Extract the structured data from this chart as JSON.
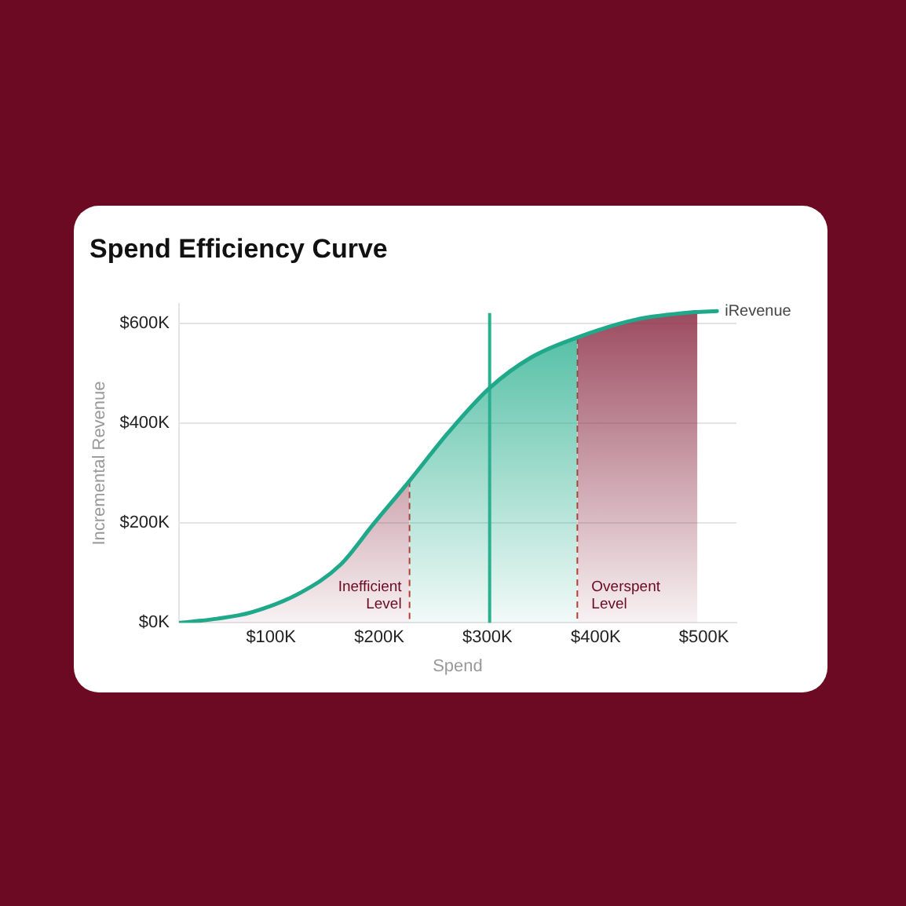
{
  "chart_data": {
    "type": "line",
    "title": "Spend Efficiency Curve",
    "xlabel": "Spend",
    "ylabel": "Incremental Revenue",
    "x": [
      16000,
      50000,
      82000,
      127000,
      164000,
      195000,
      227000,
      264000,
      302000,
      341000,
      384000,
      437000,
      491000,
      512000
    ],
    "series": [
      {
        "type": "area",
        "color": "#8b2d45",
        "x": [
          16000,
          50000,
          82000,
          127000,
          164000,
          195000,
          228000
        ],
        "values": [
          0,
          8000,
          21000,
          60000,
          116000,
          199000,
          283000
        ]
      },
      {
        "type": "area",
        "color": "#2bb08f",
        "x": [
          228000,
          264000,
          302000,
          341000,
          383000
        ],
        "values": [
          283000,
          382000,
          471000,
          533000,
          572000
        ]
      },
      {
        "type": "area",
        "color": "#8b2d45",
        "x": [
          383000,
          437000,
          494000
        ],
        "values": [
          572000,
          608000,
          623000
        ]
      },
      {
        "name": "iRevenue",
        "color": "#1fa88a",
        "values": [
          0,
          8000,
          21000,
          60000,
          116000,
          199000,
          282000,
          382000,
          471000,
          533000,
          573000,
          608000,
          623000,
          625000
        ]
      }
    ],
    "xlim": [
      15000,
      530000
    ],
    "xticks": [
      {
        "value": 100000,
        "label": "$100K"
      },
      {
        "value": 200000,
        "label": "$200K"
      },
      {
        "value": 300000,
        "label": "$300K"
      },
      {
        "value": 400000,
        "label": "$400K"
      },
      {
        "value": 500000,
        "label": "$500K"
      }
    ],
    "ylim": [
      0,
      640000
    ],
    "yticks": [
      {
        "value": 0,
        "label": "$0K"
      },
      {
        "value": 200000,
        "label": "$200K"
      },
      {
        "value": 400000,
        "label": "$400K"
      },
      {
        "value": 600000,
        "label": "$600K"
      }
    ],
    "grid": "y",
    "legend": false,
    "marker": "none",
    "line_style": "solid",
    "annotations": [
      "Inefficient Level",
      "Overspent Level"
    ],
    "ref_lines": [
      {
        "axis": "x",
        "value": 228000,
        "color": "#c0392b",
        "line_style": "dashed"
      },
      {
        "axis": "x",
        "value": 383000,
        "color": "#c0392b",
        "line_style": "dashed"
      },
      {
        "axis": "x",
        "value": 302000,
        "color": "#2bb08f",
        "line_style": "solid"
      }
    ]
  }
}
